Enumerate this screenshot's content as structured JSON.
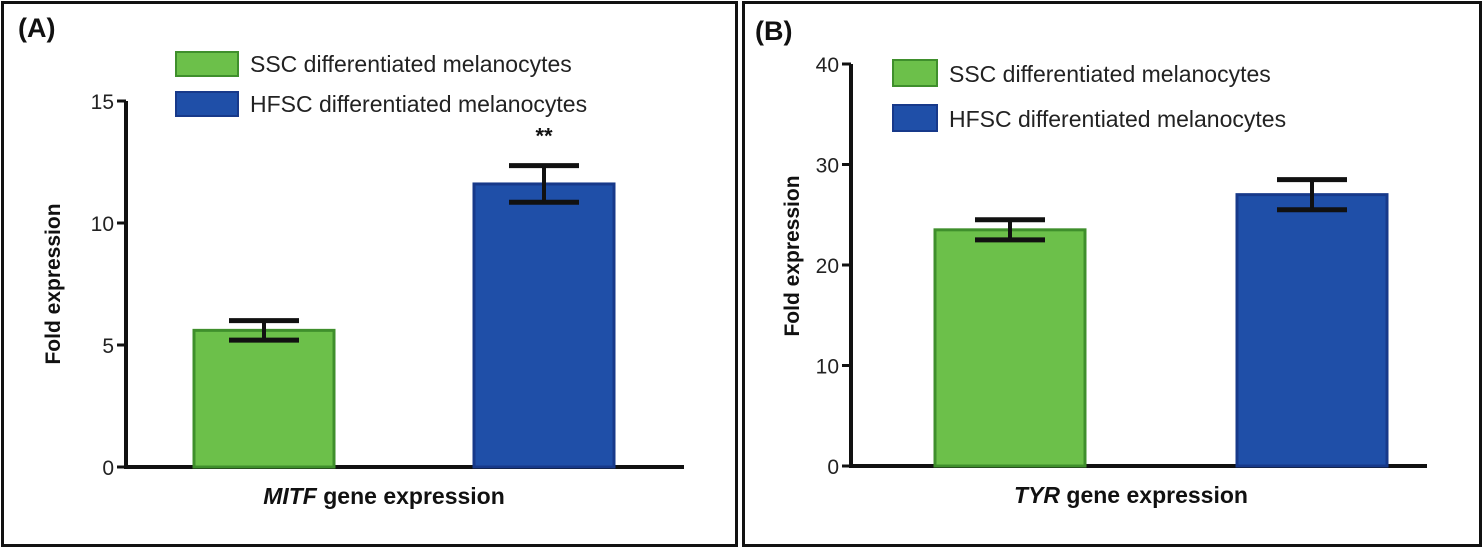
{
  "chart_data": [
    {
      "type": "bar",
      "panel_label": "(A)",
      "title": "",
      "xlabel_gene": "MITF",
      "xlabel_rest": " gene expression",
      "ylabel": "Fold expression",
      "ylim": [
        0,
        15
      ],
      "yticks": [
        "0",
        "5",
        "10",
        "15"
      ],
      "categories": [
        "SSC differentiated melanocytes",
        "HFSC differentiated melanocytes"
      ],
      "values": [
        5.6,
        11.6
      ],
      "errors": [
        0.4,
        0.75
      ],
      "colors": [
        "#6cc04a",
        "#1f4fa8"
      ],
      "annotations": [
        "",
        "**"
      ],
      "legend": [
        "SSC differentiated melanocytes",
        "HFSC differentiated melanocytes"
      ]
    },
    {
      "type": "bar",
      "panel_label": "(B)",
      "title": "",
      "xlabel_gene": "TYR",
      "xlabel_rest": " gene expression",
      "ylabel": "Fold expression",
      "ylim": [
        0,
        40
      ],
      "yticks": [
        "0",
        "10",
        "20",
        "30",
        "40"
      ],
      "categories": [
        "SSC differentiated melanocytes",
        "HFSC differentiated melanocytes"
      ],
      "values": [
        23.5,
        27.0
      ],
      "errors": [
        1.0,
        1.5
      ],
      "colors": [
        "#6cc04a",
        "#1f4fa8"
      ],
      "annotations": [
        "",
        ""
      ],
      "legend": [
        "SSC differentiated melanocytes",
        "HFSC differentiated melanocytes"
      ]
    }
  ]
}
